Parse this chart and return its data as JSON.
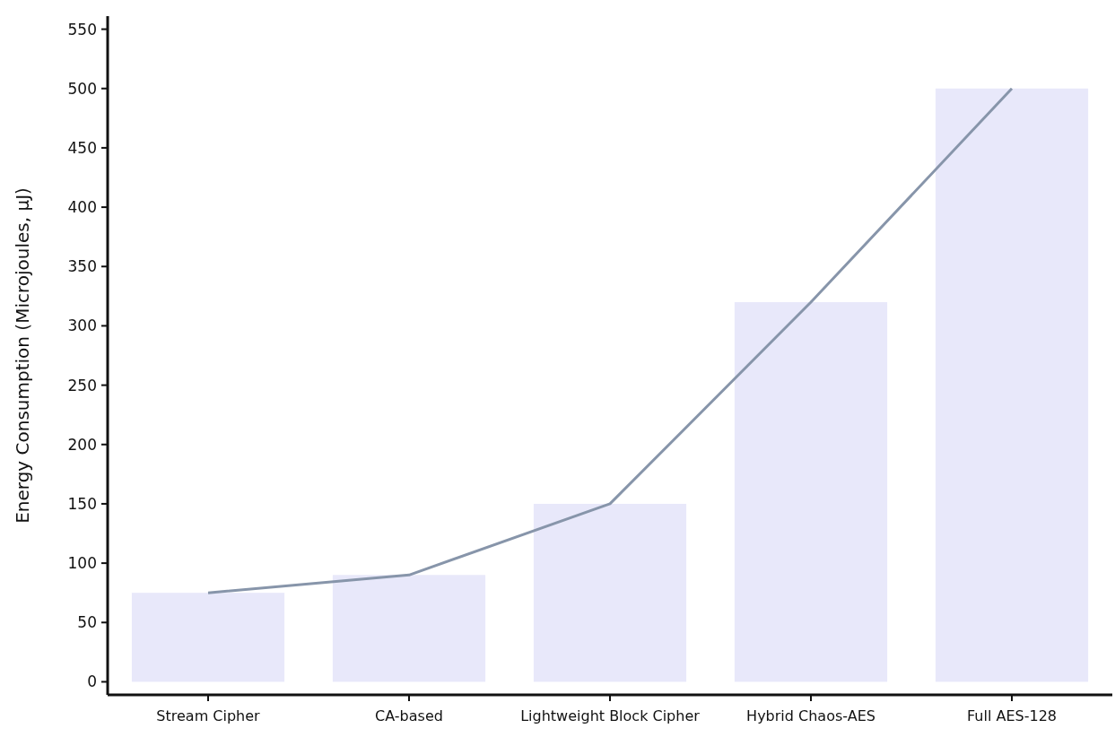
{
  "chart_data": {
    "type": "bar",
    "ylabel": "Energy Consumption (Microjoules, μJ)",
    "categories": [
      "Stream Cipher",
      "CA-based",
      "Lightweight Block Cipher",
      "Hybrid Chaos-AES",
      "Full AES-128"
    ],
    "series": [
      {
        "color": "#e8e8fa",
        "values": [
          75,
          90,
          150,
          320,
          500
        ]
      },
      {
        "type": "line",
        "color": "#8795aa",
        "values": [
          75,
          90,
          150,
          320,
          500
        ]
      }
    ],
    "ylim": [
      -11,
      561
    ],
    "yticks": [
      0,
      50,
      100,
      150,
      200,
      250,
      300,
      350,
      400,
      450,
      500,
      550
    ],
    "grid": false,
    "marker": "none",
    "line_style": "solid"
  }
}
